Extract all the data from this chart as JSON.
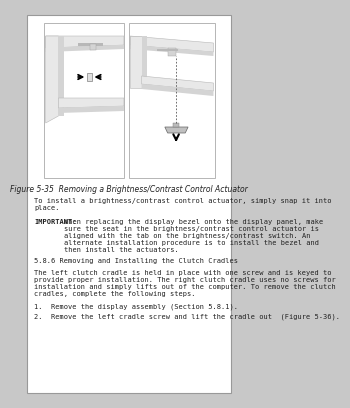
{
  "bg_color": "#c8c8c8",
  "page_bg": "#ffffff",
  "page_border": "#999999",
  "figure_caption": "Figure 5-35  Removing a Brightness/Contrast Control Actuator",
  "para1_line1": "To install a brightness/contrast control actuator, simply snap it into",
  "para1_line2": "place.",
  "important_label": "IMPORTANT:",
  "important_line1": "When replacing the display bezel onto the display panel, make",
  "important_line2": "sure the seat in the brightness/contrast control actuator is",
  "important_line3": "aligned with the tab on the brightness/contrast switch. An",
  "important_line4": "alternate installation procedure is to install the bezel and",
  "important_line5": "then install the actuators.",
  "section_header": "5.8.6 Removing and Installing the Clutch Cradles",
  "para2_line1": "The left clutch cradle is held in place with one screw and is keyed to",
  "para2_line2": "provide proper installation. The right clutch cradle uses no screws for",
  "para2_line3": "installation and simply lifts out of the computer. To remove the clutch",
  "para2_line4": "cradles, complete the following steps.",
  "step1": "1.  Remove the display assembly (Section 5.8.1).",
  "step2": "2.  Remove the left cradle screw and lift the cradle out  (Figure 5-36).",
  "panel_border": "#aaaaaa",
  "bezel_light": "#e8e8e8",
  "bezel_mid": "#d4d4d4",
  "bezel_dark": "#b8b8b8",
  "bezel_darker": "#a0a0a0",
  "text_color": "#222222",
  "mono_size": 5.0,
  "caption_size": 5.5
}
